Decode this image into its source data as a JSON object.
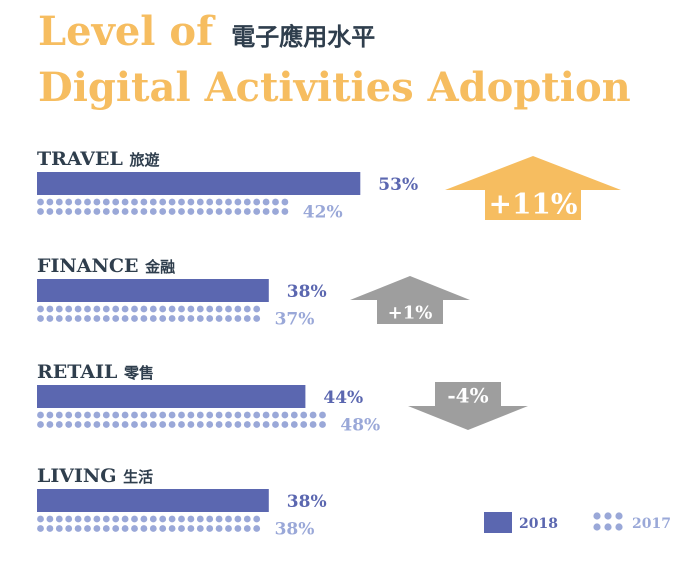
{
  "title": {
    "line1_en": "Level of",
    "line1_zh": "電子應用水平",
    "line2_en": "Digital Activities Adoption"
  },
  "colors": {
    "series_2018": "#5b67b0",
    "series_2017": "#9aa8d8",
    "title": "#f6bd60",
    "text_dark": "#2f3e4d",
    "increase_big": "#f6bd60",
    "change_small": "#9e9e9e"
  },
  "chart_data": {
    "type": "bar",
    "title": "Level of Digital Activities Adoption",
    "categories": [
      "TRAVEL",
      "FINANCE",
      "RETAIL",
      "LIVING"
    ],
    "categories_zh": [
      "旅遊",
      "金融",
      "零售",
      "生活"
    ],
    "series": [
      {
        "name": "2018",
        "values": [
          53,
          38,
          44,
          38
        ],
        "labels": [
          "53%",
          "38%",
          "44%",
          "38%"
        ]
      },
      {
        "name": "2017",
        "values": [
          42,
          37,
          48,
          38
        ],
        "labels": [
          "42%",
          "37%",
          "48%",
          "38%"
        ]
      }
    ],
    "changes": [
      {
        "label": "+11%",
        "direction": "up",
        "emphasis": "large"
      },
      {
        "label": "+1%",
        "direction": "up",
        "emphasis": "small"
      },
      {
        "label": "-4%",
        "direction": "down",
        "emphasis": "small"
      },
      null
    ],
    "legend": [
      "2018",
      "2017"
    ],
    "legend_position": "bottom-right",
    "grid": false
  }
}
